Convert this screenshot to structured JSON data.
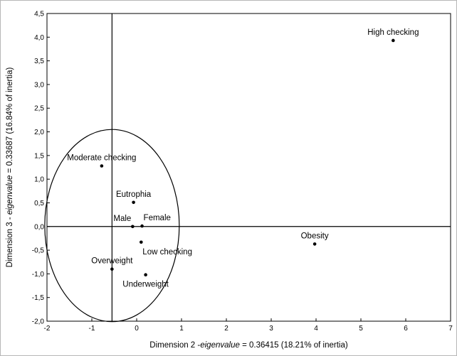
{
  "chart_data": {
    "type": "scatter",
    "xlabel_parts": [
      "Dimension 2 -",
      "eigenvalue",
      " = 0.36415 (18.21% of inertia)"
    ],
    "ylabel_parts": [
      "Dimension 3 - ",
      "eigenvalue",
      " = 0.33687 (16.84% of inertia)"
    ],
    "xlim": [
      -2,
      7
    ],
    "ylim": [
      -2.0,
      4.5
    ],
    "x_ticks": [
      -2,
      -1,
      0,
      1,
      2,
      3,
      4,
      5,
      6,
      7
    ],
    "x_tick_labels": [
      "-2",
      "-1",
      "0",
      "1",
      "2",
      "3",
      "4",
      "5",
      "6",
      "7"
    ],
    "y_ticks": [
      -2.0,
      -1.5,
      -1.0,
      -0.5,
      0.0,
      0.5,
      1.0,
      1.5,
      2.0,
      2.5,
      3.0,
      3.5,
      4.0,
      4.5
    ],
    "y_tick_labels": [
      "-2,0",
      "-1,5",
      "-1,0",
      "-0,5",
      "0,0",
      "0,5",
      "1,0",
      "1,5",
      "2,0",
      "2,5",
      "3,0",
      "3,5",
      "4,0",
      "4,5"
    ],
    "grid": false,
    "reference_lines": {
      "x": -0.55,
      "y": 0.0
    },
    "points": [
      {
        "label": "High checking",
        "x": 5.72,
        "y": 3.93,
        "label_anchor": "middle",
        "label_pos": "above"
      },
      {
        "label": "Moderate checking",
        "x": -0.78,
        "y": 1.28,
        "label_anchor": "middle",
        "label_pos": "above"
      },
      {
        "label": "Eutrophia",
        "x": -0.07,
        "y": 0.51,
        "label_anchor": "middle",
        "label_pos": "above"
      },
      {
        "label": "Male",
        "x": -0.09,
        "y": 0.0,
        "label_anchor": "end",
        "label_pos": "above"
      },
      {
        "label": "Female",
        "x": 0.12,
        "y": 0.01,
        "label_anchor": "start",
        "label_pos": "above"
      },
      {
        "label": "Low checking",
        "x": 0.1,
        "y": -0.33,
        "label_anchor": "start",
        "label_pos": "below"
      },
      {
        "label": "Overweight",
        "x": -0.55,
        "y": -0.9,
        "label_anchor": "middle",
        "label_pos": "above"
      },
      {
        "label": "Underweight",
        "x": 0.2,
        "y": -1.02,
        "label_anchor": "middle",
        "label_pos": "below"
      },
      {
        "label": "Obesity",
        "x": 3.97,
        "y": -0.37,
        "label_anchor": "middle",
        "label_pos": "above"
      }
    ],
    "ellipse": {
      "cx": -0.55,
      "cy": 0.02,
      "rx": 1.5,
      "ry": 2.03
    }
  }
}
